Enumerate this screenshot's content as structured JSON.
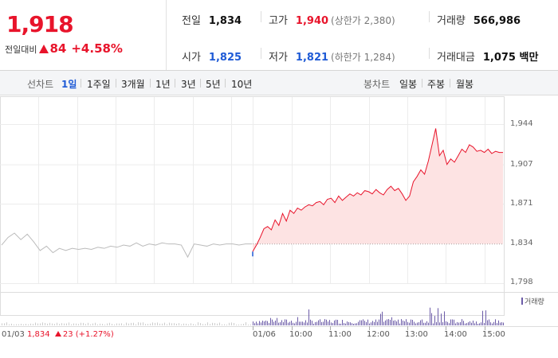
{
  "summary": {
    "price": "1,918",
    "change_label": "전일대비",
    "change_value": "84",
    "change_percent": "+4.58%",
    "prev_close": {
      "label": "전일",
      "value": "1,834"
    },
    "open": {
      "label": "시가",
      "value": "1,825"
    },
    "high": {
      "label": "고가",
      "value": "1,940",
      "note": "(상한가 2,380)"
    },
    "low": {
      "label": "저가",
      "value": "1,821",
      "note": "(하한가 1,284)"
    },
    "volume": {
      "label": "거래량",
      "value": "566,986"
    },
    "amount": {
      "label": "거래대금",
      "value": "1,075 백만"
    }
  },
  "toolbar": {
    "line_label": "선차트",
    "line_periods": [
      "1일",
      "1주일",
      "3개월",
      "1년",
      "3년",
      "5년",
      "10년"
    ],
    "active_period": "1일",
    "candle_label": "봉차트",
    "candle_periods": [
      "일봉",
      "주봉",
      "월봉"
    ]
  },
  "colors": {
    "up": "#e8142b",
    "down": "#1f5bd6",
    "prev_line": "#bbbbbb",
    "volume": "#6c5ca8"
  },
  "chart_data": {
    "type": "line",
    "y_ticks": [
      "1,944",
      "1,907",
      "1,871",
      "1,834",
      "1,798"
    ],
    "ylim": [
      1798,
      1944
    ],
    "x_ticks": [
      "01/06",
      "10:00",
      "11:00",
      "12:00",
      "13:00",
      "14:00",
      "15:00"
    ],
    "prev_day": {
      "date": "01/03",
      "close": "1,834",
      "change": "23",
      "change_percent": "(+1.27%)"
    },
    "reference_line": 1834,
    "prev_series": [
      1833,
      1840,
      1844,
      1838,
      1843,
      1836,
      1828,
      1832,
      1826,
      1830,
      1828,
      1830,
      1829,
      1830,
      1829,
      1831,
      1830,
      1832,
      1831,
      1833,
      1832,
      1835,
      1832,
      1834,
      1833,
      1835,
      1834,
      1834,
      1833,
      1822,
      1834,
      1833,
      1832,
      1834,
      1833,
      1834,
      1834,
      1833,
      1834,
      1834
    ],
    "today_series": [
      1827,
      1833,
      1840,
      1848,
      1850,
      1847,
      1856,
      1851,
      1862,
      1855,
      1865,
      1862,
      1867,
      1865,
      1868,
      1870,
      1869,
      1872,
      1873,
      1870,
      1875,
      1876,
      1872,
      1878,
      1874,
      1877,
      1880,
      1878,
      1881,
      1879,
      1883,
      1882,
      1880,
      1884,
      1881,
      1879,
      1884,
      1887,
      1883,
      1885,
      1880,
      1874,
      1878,
      1891,
      1896,
      1902,
      1898,
      1910,
      1925,
      1940,
      1915,
      1920,
      1907,
      1912,
      1909,
      1915,
      1921,
      1918,
      1925,
      1923,
      1919,
      1920,
      1918,
      1921,
      1917,
      1919,
      1918,
      1918
    ],
    "volume_label": "거래량"
  }
}
